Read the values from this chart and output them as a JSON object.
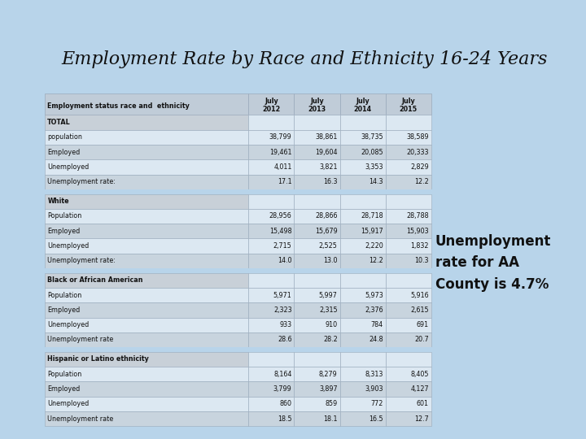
{
  "title": "Employment Rate by Race and Ethnicity 16-24 Years",
  "annotation": "Unemployment\nrate for AA\nCounty is 4.7%",
  "bg_color": "#b8d4ea",
  "title_bg_color": "#b8ddd5",
  "columns": [
    "Employment status race and  ethnicity",
    "July\n2012",
    "July\n2013",
    "July\n2014",
    "July\n2015"
  ],
  "rows": [
    {
      "label": "TOTAL",
      "type": "section_header",
      "values": [
        "",
        "",
        "",
        ""
      ]
    },
    {
      "label": "population",
      "type": "data_white",
      "values": [
        "38,799",
        "38,861",
        "38,735",
        "38,589"
      ]
    },
    {
      "label": "Employed",
      "type": "data_gray",
      "values": [
        "19,461",
        "19,604",
        "20,085",
        "20,333"
      ]
    },
    {
      "label": "Unemployed",
      "type": "data_white",
      "values": [
        "4,011",
        "3,821",
        "3,353",
        "2,829"
      ]
    },
    {
      "label": "Unemployment rate:",
      "type": "data_gray",
      "values": [
        "17.1",
        "16.3",
        "14.3",
        "12.2"
      ]
    },
    {
      "label": "",
      "type": "spacer",
      "values": [
        "",
        "",
        "",
        ""
      ]
    },
    {
      "label": "White",
      "type": "section_header",
      "values": [
        "",
        "",
        "",
        ""
      ]
    },
    {
      "label": "Population",
      "type": "data_white",
      "values": [
        "28,956",
        "28,866",
        "28,718",
        "28,788"
      ]
    },
    {
      "label": "Employed",
      "type": "data_gray",
      "values": [
        "15,498",
        "15,679",
        "15,917",
        "15,903"
      ]
    },
    {
      "label": "Unemployed",
      "type": "data_white",
      "values": [
        "2,715",
        "2,525",
        "2,220",
        "1,832"
      ]
    },
    {
      "label": "Unemployment rate:",
      "type": "data_gray",
      "values": [
        "14.0",
        "13.0",
        "12.2",
        "10.3"
      ]
    },
    {
      "label": "",
      "type": "spacer",
      "values": [
        "",
        "",
        "",
        ""
      ]
    },
    {
      "label": "Black or African American",
      "type": "section_header",
      "values": [
        "",
        "",
        "",
        ""
      ]
    },
    {
      "label": "Population",
      "type": "data_white",
      "values": [
        "5,971",
        "5,997",
        "5,973",
        "5,916"
      ]
    },
    {
      "label": "Employed",
      "type": "data_gray",
      "values": [
        "2,323",
        "2,315",
        "2,376",
        "2,615"
      ]
    },
    {
      "label": "Unemployed",
      "type": "data_white",
      "values": [
        "933",
        "910",
        "784",
        "691"
      ]
    },
    {
      "label": "Unemployment rate",
      "type": "data_gray",
      "values": [
        "28.6",
        "28.2",
        "24.8",
        "20.7"
      ]
    },
    {
      "label": "",
      "type": "spacer",
      "values": [
        "",
        "",
        "",
        ""
      ]
    },
    {
      "label": "Hispanic or Latino ethnicity",
      "type": "section_header",
      "values": [
        "",
        "",
        "",
        ""
      ]
    },
    {
      "label": "Population",
      "type": "data_white",
      "values": [
        "8,164",
        "8,279",
        "8,313",
        "8,405"
      ]
    },
    {
      "label": "Employed",
      "type": "data_gray",
      "values": [
        "3,799",
        "3,897",
        "3,903",
        "4,127"
      ]
    },
    {
      "label": "Unemployed",
      "type": "data_white",
      "values": [
        "860",
        "859",
        "772",
        "601"
      ]
    },
    {
      "label": "Unemployment rate",
      "type": "data_gray",
      "values": [
        "18.5",
        "18.1",
        "16.5",
        "12.7"
      ]
    }
  ],
  "row_colors": {
    "section_header": "#c8d0d8",
    "data_white": "#dce8f2",
    "data_gray": "#c8d4de",
    "spacer": "#b8d4ea"
  },
  "header_color": "#c0ccd8",
  "edge_color": "#9aaabb",
  "text_color": "#111111"
}
